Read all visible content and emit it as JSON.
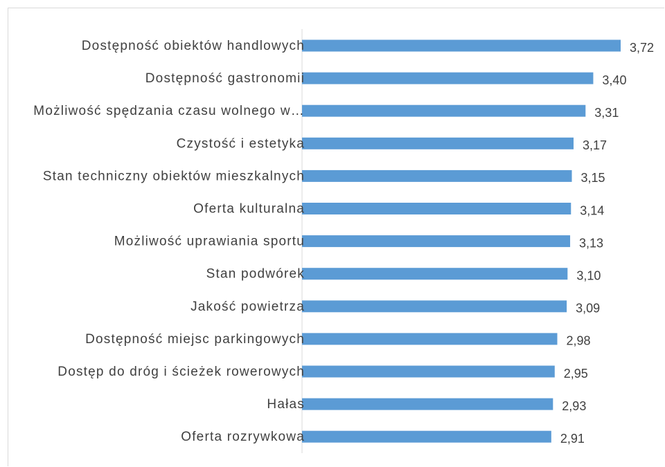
{
  "chart_data": {
    "type": "bar",
    "orientation": "horizontal",
    "categories": [
      "Dostępność obiektów handlowych",
      "Dostępność gastronomii",
      "Możliwość spędzania czasu wolnego w…",
      "Czystość i estetyka",
      "Stan techniczny obiektów mieszkalnych",
      "Oferta kulturalna",
      "Możliwość uprawiania sportu",
      "Stan podwórek",
      "Jakość powietrza",
      "Dostępność miejsc parkingowych",
      "Dostęp do dróg i ścieżek rowerowych",
      "Hałas",
      "Oferta rozrywkowa"
    ],
    "values": [
      3.72,
      3.4,
      3.31,
      3.17,
      3.15,
      3.14,
      3.13,
      3.1,
      3.09,
      2.98,
      2.95,
      2.93,
      2.91
    ],
    "value_labels": [
      "3,72",
      "3,40",
      "3,31",
      "3,17",
      "3,15",
      "3,14",
      "3,13",
      "3,10",
      "3,09",
      "2,98",
      "2,95",
      "2,93",
      "2,91"
    ],
    "title": "",
    "xlabel": "",
    "ylabel": "",
    "xlim": [
      0,
      3.72
    ],
    "grid": false,
    "legend": "none",
    "colors": {
      "bar": "#5b9bd5",
      "axis": "#d9d9d9",
      "text": "#404040",
      "frame": "#d9d9d9"
    }
  }
}
